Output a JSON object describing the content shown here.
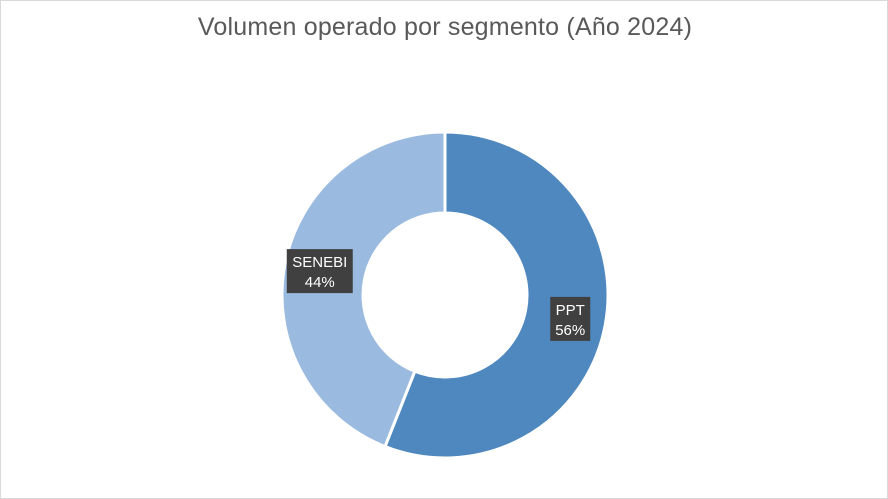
{
  "chart_data": {
    "type": "pie",
    "donut": true,
    "title": "Volumen operado por segmento (Año 2024)",
    "categories": [
      "PPT",
      "SENEBI"
    ],
    "values": [
      56,
      44
    ],
    "data_labels": [
      {
        "category": "PPT",
        "percent": "56%"
      },
      {
        "category": "SENEBI",
        "percent": "44%"
      }
    ],
    "colors": [
      "#4f88be",
      "#9bbae0"
    ],
    "label_box_color": "#404040",
    "legend": "none"
  }
}
